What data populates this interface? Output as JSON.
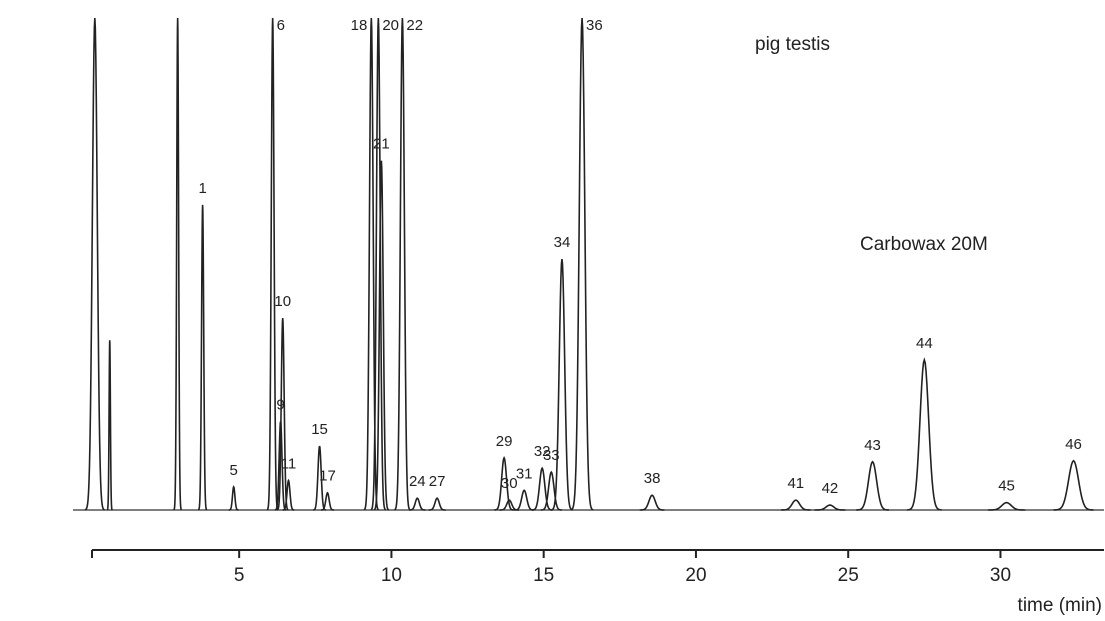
{
  "chart_data": {
    "type": "chromatogram",
    "annotations": [
      "pig testis",
      "Carbowax 20M"
    ],
    "x_label": "time (min)",
    "peaks": {
      "labels": [
        null,
        null,
        null,
        "1",
        "5",
        "6",
        "9",
        "10",
        "11",
        "15",
        "17",
        "18",
        "20",
        "21",
        "22",
        "24",
        "27",
        "29",
        "30",
        "31",
        "32",
        "33",
        "34",
        "36",
        "38",
        "41",
        "42",
        "43",
        "44",
        "45",
        "46"
      ],
      "times": [
        0.26,
        0.75,
        2.98,
        3.8,
        4.82,
        6.1,
        6.36,
        6.43,
        6.62,
        7.64,
        7.9,
        9.34,
        9.57,
        9.67,
        10.36,
        10.85,
        11.5,
        13.7,
        13.87,
        14.36,
        14.95,
        15.25,
        15.6,
        16.26,
        18.56,
        23.28,
        24.4,
        25.8,
        27.5,
        30.2,
        32.4
      ],
      "heights": [
        100,
        34.5,
        100,
        62,
        4.7,
        100,
        18,
        39,
        6,
        13,
        3.5,
        100,
        100,
        71,
        100,
        2.4,
        2.4,
        10.6,
        2,
        4,
        8.5,
        7.7,
        51,
        100,
        3,
        2,
        1,
        9.8,
        30.5,
        1.5,
        10
      ]
    },
    "xlim": [
      0.2,
      33.4
    ],
    "xticks": [
      5,
      10,
      15,
      20,
      25,
      30
    ],
    "ylim": [
      0,
      100
    ]
  }
}
